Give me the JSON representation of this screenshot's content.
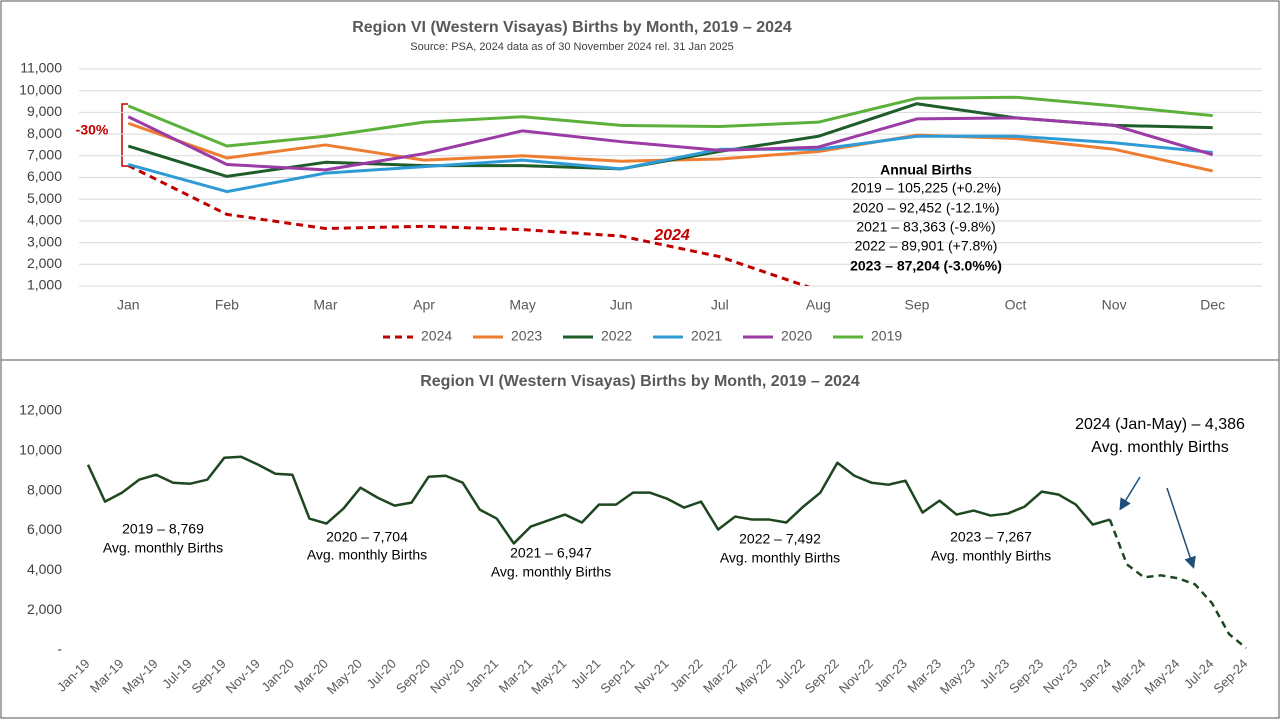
{
  "chart_data": [
    {
      "type": "line",
      "title": "Region VI (Western Visayas) Births by Month, 2019 – 2024",
      "subtitle": "Source: PSA, 2024 data as of 30 November 2024 rel. 31 Jan 2025",
      "categories": [
        "Jan",
        "Feb",
        "Mar",
        "Apr",
        "May",
        "Jun",
        "Jul",
        "Aug",
        "Sep",
        "Oct",
        "Nov",
        "Dec"
      ],
      "series": [
        {
          "name": "2024",
          "color": "#c00000",
          "dash": true,
          "values": [
            6550,
            4300,
            3650,
            3750,
            3600,
            3300,
            2350,
            800,
            null,
            null,
            null,
            null
          ]
        },
        {
          "name": "2023",
          "color": "#ed7d31",
          "values": [
            8500,
            6900,
            7500,
            6800,
            7000,
            6750,
            6850,
            7200,
            7950,
            7800,
            7300,
            6300
          ]
        },
        {
          "name": "2022",
          "color": "#1e5c2a",
          "values": [
            7450,
            6050,
            6700,
            6550,
            6550,
            6400,
            7200,
            7900,
            9400,
            8750,
            8400,
            8300
          ]
        },
        {
          "name": "2021",
          "color": "#2e9bd6",
          "values": [
            6600,
            5350,
            6200,
            6500,
            6800,
            6400,
            7300,
            7300,
            7900,
            7900,
            7600,
            7150
          ]
        },
        {
          "name": "2020",
          "color": "#9b3ba5",
          "values": [
            8800,
            6600,
            6350,
            7100,
            8150,
            7650,
            7250,
            7400,
            8700,
            8750,
            8400,
            7050
          ]
        },
        {
          "name": "2019",
          "color": "#5bb13a",
          "values": [
            9300,
            7450,
            7900,
            8550,
            8800,
            8400,
            8350,
            8550,
            9650,
            9700,
            9300,
            8850
          ]
        }
      ],
      "ylim": [
        1000,
        11000
      ],
      "yticks": [
        {
          "value": 1000,
          "label": "1,000"
        },
        {
          "value": 2000,
          "label": "2,000"
        },
        {
          "value": 3000,
          "label": "3,000"
        },
        {
          "value": 4000,
          "label": "4,000"
        },
        {
          "value": 5000,
          "label": "5,000"
        },
        {
          "value": 6000,
          "label": "6,000"
        },
        {
          "value": 7000,
          "label": "7,000"
        },
        {
          "value": 8000,
          "label": "8,000"
        },
        {
          "value": 9000,
          "label": "9,000"
        },
        {
          "value": 10000,
          "label": "10,000"
        },
        {
          "value": 11000,
          "label": "11,000"
        }
      ],
      "grid": true,
      "legend": "bottom",
      "annotations": [
        "-30%",
        "2024"
      ],
      "annual_births": {
        "title": "Annual Births",
        "lines": [
          "2019 – 105,225 (+0.2%)",
          "2020 – 92,452 (-12.1%)",
          "2021 – 83,363 (-9.8%)",
          "2022 – 89,901 (+7.8%)",
          "2023 – 87,204 (-3.0%%)"
        ]
      }
    },
    {
      "type": "line",
      "title": "Region VI (Western Visayas) Births by Month, 2019 – 2024",
      "categories": [
        "Jan-19",
        null,
        "Mar-19",
        null,
        "May-19",
        null,
        "Jul-19",
        null,
        "Sep-19",
        null,
        "Nov-19",
        null,
        "Jan-20",
        null,
        "Mar-20",
        null,
        "May-20",
        null,
        "Jul-20",
        null,
        "Sep-20",
        null,
        "Nov-20",
        null,
        "Jan-21",
        null,
        "Mar-21",
        null,
        "May-21",
        null,
        "Jul-21",
        null,
        "Sep-21",
        null,
        "Nov-21",
        null,
        "Jan-22",
        null,
        "Mar-22",
        null,
        "May-22",
        null,
        "Jul-22",
        null,
        "Sep-22",
        null,
        "Nov-22",
        null,
        "Jan-23",
        null,
        "Mar-23",
        null,
        "May-23",
        null,
        "Jul-23",
        null,
        "Sep-23",
        null,
        "Nov-23",
        null,
        "Jan-24",
        null,
        "Mar-24",
        null,
        "May-24",
        null,
        "Jul-24",
        null,
        "Sep-24"
      ],
      "series": [
        {
          "color": "#1e4620",
          "values": [
            9300,
            7450,
            7900,
            8550,
            8800,
            8400,
            8350,
            8550,
            9650,
            9700,
            9300,
            8850,
            8800,
            6600,
            6350,
            7100,
            8150,
            7650,
            7250,
            7400,
            8700,
            8750,
            8400,
            7050,
            6600,
            5350,
            6200,
            6500,
            6800,
            6400,
            7300,
            7300,
            7900,
            7900,
            7600,
            7150,
            7450,
            6050,
            6700,
            6550,
            6550,
            6400,
            7200,
            7900,
            9400,
            8750,
            8400,
            8300,
            8500,
            6900,
            7500,
            6800,
            7000,
            6750,
            6850,
            7200,
            7950,
            7800,
            7300,
            6300,
            6550,
            null,
            null,
            null,
            null,
            null,
            null,
            null,
            null
          ]
        },
        {
          "color": "#1e4620",
          "dash": true,
          "values": [
            null,
            null,
            null,
            null,
            null,
            null,
            null,
            null,
            null,
            null,
            null,
            null,
            null,
            null,
            null,
            null,
            null,
            null,
            null,
            null,
            null,
            null,
            null,
            null,
            null,
            null,
            null,
            null,
            null,
            null,
            null,
            null,
            null,
            null,
            null,
            null,
            null,
            null,
            null,
            null,
            null,
            null,
            null,
            null,
            null,
            null,
            null,
            null,
            null,
            null,
            null,
            null,
            null,
            null,
            null,
            null,
            null,
            null,
            null,
            null,
            6550,
            4300,
            3650,
            3750,
            3600,
            3300,
            2350,
            800,
            100
          ]
        }
      ],
      "ylim": [
        0,
        12000
      ],
      "yticks": [
        {
          "value": 0,
          "label": "-"
        },
        {
          "value": 2000,
          "label": "2,000"
        },
        {
          "value": 4000,
          "label": "4,000"
        },
        {
          "value": 6000,
          "label": "6,000"
        },
        {
          "value": 8000,
          "label": "8,000"
        },
        {
          "value": 10000,
          "label": "10,000"
        },
        {
          "value": 12000,
          "label": "12,000"
        }
      ],
      "grid": false,
      "annotations": [
        [
          "2019 – 8,769",
          "Avg. monthly Births"
        ],
        [
          "2020 – 7,704",
          "Avg. monthly Births"
        ],
        [
          "2021 – 6,947",
          "Avg. monthly Births"
        ],
        [
          "2022 – 7,492",
          "Avg. monthly Births"
        ],
        [
          "2023 – 7,267",
          "Avg. monthly Births"
        ],
        [
          "2024 (Jan-May) – 4,386",
          "Avg. monthly Births"
        ]
      ]
    }
  ]
}
